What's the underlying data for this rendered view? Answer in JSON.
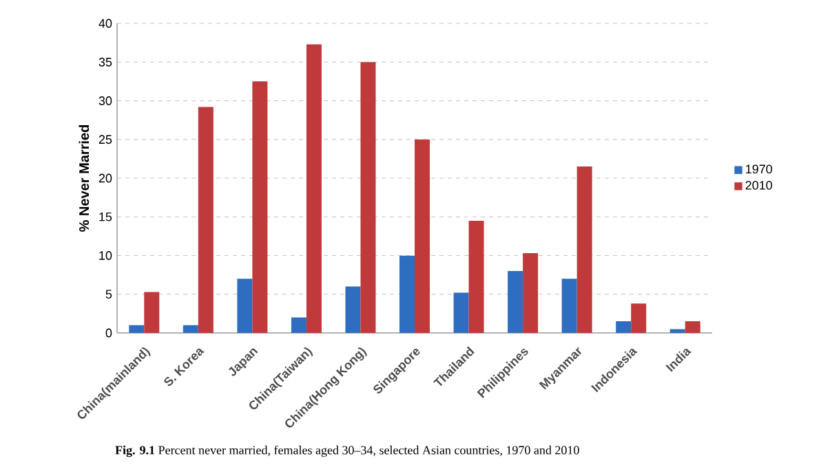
{
  "chart_data": {
    "type": "bar",
    "ylabel": "% Never Married",
    "categories": [
      "China(mainland)",
      "S. Korea",
      "Japan",
      "China(Taiwan)",
      "China(Hong Kong)",
      "Singapore",
      "Thailand",
      "Philippines",
      "Myanmar",
      "Indonesia",
      "India"
    ],
    "series": [
      {
        "name": "1970",
        "color": "#2e6dbf",
        "values": [
          1,
          1,
          7,
          2,
          6,
          10,
          5.2,
          8,
          7,
          1.5,
          0.5
        ]
      },
      {
        "name": "2010",
        "color": "#c0393b",
        "values": [
          5.3,
          29.2,
          32.5,
          37.3,
          35,
          25,
          14.5,
          10.3,
          21.5,
          3.8,
          1.5
        ]
      }
    ],
    "ylim": [
      0,
      40
    ],
    "yticks": [
      0,
      5,
      10,
      15,
      20,
      25,
      30,
      35,
      40
    ],
    "grid": "y",
    "legend": "right",
    "annotations": [
      "**Fig. 9.1** Percent never married, females aged 30–34, selected Asian countries, 1970 and 2010"
    ]
  }
}
